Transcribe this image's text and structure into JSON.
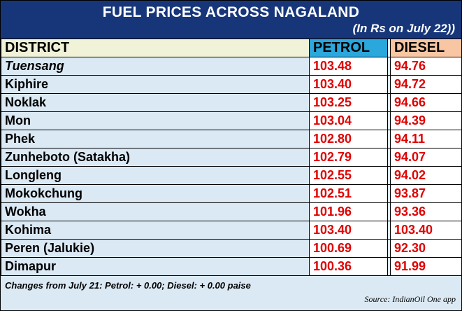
{
  "header": {
    "title": "FUEL PRICES ACROSS NAGALAND",
    "subtitle": "(In Rs on July 22))"
  },
  "table": {
    "columns": [
      "DISTRICT",
      "PETROL",
      "DIESEL"
    ],
    "rows": [
      {
        "district": "Tuensang",
        "petrol": "103.48",
        "diesel": "94.76"
      },
      {
        "district": "Kiphire",
        "petrol": "103.40",
        "diesel": "94.72"
      },
      {
        "district": "Noklak",
        "petrol": "103.25",
        "diesel": "94.66"
      },
      {
        "district": "Mon",
        "petrol": "103.04",
        "diesel": "94.39"
      },
      {
        "district": "Phek",
        "petrol": "102.80",
        "diesel": "94.11"
      },
      {
        "district": "Zunheboto (Satakha)",
        "petrol": "102.79",
        "diesel": "94.07"
      },
      {
        "district": "Longleng",
        "petrol": "102.55",
        "diesel": "94.02"
      },
      {
        "district": "Mokokchung",
        "petrol": "102.51",
        "diesel": "93.87"
      },
      {
        "district": "Wokha",
        "petrol": "101.96",
        "diesel": "93.36"
      },
      {
        "district": "Kohima",
        "petrol": "103.40",
        "diesel": "103.40"
      },
      {
        "district": "Peren (Jalukie)",
        "petrol": "100.69",
        "diesel": "92.30"
      },
      {
        "district": "Dimapur",
        "petrol": "100.36",
        "diesel": "91.99"
      }
    ]
  },
  "footer": {
    "note": "Changes from July 21: Petrol: + 0.00; Diesel: + 0.00 paise",
    "source": "Source: IndianOil One app"
  },
  "colors": {
    "header_bg": "#17367a",
    "price_text": "#e00000",
    "petrol_header": "#2aa7dc",
    "diesel_header": "#f8c6a2",
    "district_header": "#f0f3d8",
    "district_bg": "#dbe9f4"
  }
}
